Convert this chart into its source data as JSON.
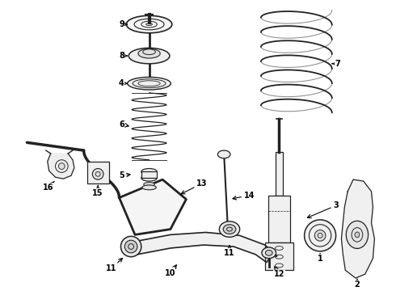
{
  "background_color": "#ffffff",
  "line_color": "#222222",
  "fig_width": 4.9,
  "fig_height": 3.6,
  "dpi": 100
}
